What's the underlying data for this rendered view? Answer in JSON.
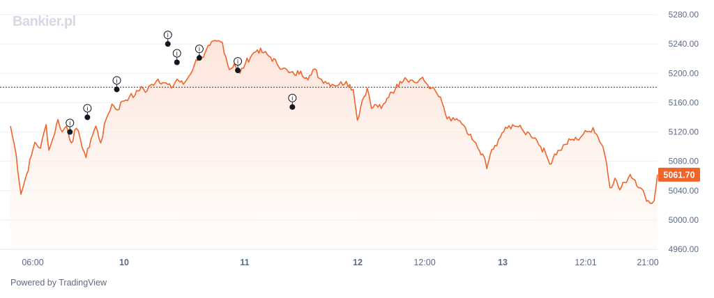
{
  "branding": {
    "watermark": "Bankier.pl",
    "powered_by": "Powered by TradingView"
  },
  "colors": {
    "line": "#f0642a",
    "area_top": "#fde3d8",
    "area_bottom": "#fff7f3",
    "grid": "#eceef2",
    "reference_line": "#333333",
    "marker_fill": "#131722",
    "price_badge": "#f0642a",
    "axis_text": "#5d6a85"
  },
  "chart_data": {
    "type": "line",
    "title": "",
    "xlabel": "",
    "ylabel": "",
    "ylim": [
      4960,
      5300
    ],
    "grid": true,
    "y_ticks": [
      "5280.00",
      "5240.00",
      "5200.00",
      "5160.00",
      "5120.00",
      "5080.00",
      "5040.00",
      "5000.00",
      "4960.00"
    ],
    "x_ticks": [
      "06:00",
      "10",
      "11",
      "12",
      "12:00",
      "13",
      "12:01",
      "21:00"
    ],
    "reference_line": 5181,
    "last_price": "5061.70",
    "series": [
      {
        "values": [
          [
            0,
            5128
          ],
          [
            0.8,
            5090
          ],
          [
            1.5,
            5035
          ],
          [
            2.3,
            5062
          ],
          [
            3.0,
            5088
          ],
          [
            3.5,
            5106
          ],
          [
            4.3,
            5098
          ],
          [
            5.1,
            5130
          ],
          [
            5.5,
            5095
          ],
          [
            6.1,
            5112
          ],
          [
            6.8,
            5137
          ],
          [
            7.4,
            5120
          ],
          [
            8.0,
            5128
          ],
          [
            8.7,
            5105
          ],
          [
            9.4,
            5125
          ],
          [
            10.0,
            5110
          ],
          [
            10.8,
            5085
          ],
          [
            11.5,
            5110
          ],
          [
            12.2,
            5128
          ],
          [
            12.9,
            5105
          ],
          [
            13.7,
            5138
          ],
          [
            14.5,
            5158
          ],
          [
            15.3,
            5150
          ],
          [
            16.0,
            5162
          ],
          [
            17.0,
            5168
          ],
          [
            17.8,
            5170
          ],
          [
            18.7,
            5182
          ],
          [
            19.3,
            5174
          ],
          [
            20.2,
            5185
          ],
          [
            21.1,
            5192
          ],
          [
            22.0,
            5187
          ],
          [
            23.0,
            5180
          ],
          [
            23.8,
            5192
          ],
          [
            24.7,
            5185
          ],
          [
            25.5,
            5196
          ],
          [
            26.3,
            5212
          ],
          [
            27.0,
            5225
          ],
          [
            27.6,
            5222
          ],
          [
            28.5,
            5238
          ],
          [
            29.5,
            5244
          ],
          [
            30.3,
            5242
          ],
          [
            30.8,
            5222
          ],
          [
            31.3,
            5205
          ],
          [
            32.0,
            5213
          ],
          [
            32.8,
            5200
          ],
          [
            33.6,
            5214
          ],
          [
            34.5,
            5225
          ],
          [
            35.3,
            5232
          ],
          [
            36.2,
            5228
          ],
          [
            37.2,
            5222
          ],
          [
            38.1,
            5213
          ],
          [
            39.0,
            5207
          ],
          [
            39.8,
            5201
          ],
          [
            40.6,
            5198
          ],
          [
            41.5,
            5203
          ],
          [
            42.3,
            5194
          ],
          [
            43.0,
            5198
          ],
          [
            43.5,
            5206
          ],
          [
            44.2,
            5193
          ],
          [
            45.0,
            5189
          ],
          [
            46.0,
            5185
          ],
          [
            47.0,
            5185
          ],
          [
            48.0,
            5189
          ],
          [
            49.0,
            5178
          ],
          [
            49.6,
            5136
          ],
          [
            50.3,
            5163
          ],
          [
            51.0,
            5180
          ],
          [
            51.6,
            5152
          ],
          [
            52.3,
            5157
          ],
          [
            53.0,
            5152
          ],
          [
            53.6,
            5160
          ],
          [
            54.3,
            5174
          ],
          [
            55.0,
            5178
          ],
          [
            55.7,
            5189
          ],
          [
            56.4,
            5194
          ],
          [
            57.2,
            5191
          ],
          [
            58.0,
            5187
          ],
          [
            58.7,
            5193
          ],
          [
            59.4,
            5187
          ],
          [
            60.2,
            5180
          ],
          [
            61.0,
            5172
          ],
          [
            61.7,
            5160
          ],
          [
            62.4,
            5138
          ],
          [
            63.0,
            5135
          ],
          [
            63.8,
            5138
          ],
          [
            64.5,
            5131
          ],
          [
            65.3,
            5118
          ],
          [
            66.0,
            5110
          ],
          [
            66.8,
            5098
          ],
          [
            67.5,
            5090
          ],
          [
            68.1,
            5070
          ],
          [
            68.8,
            5096
          ],
          [
            69.5,
            5101
          ],
          [
            70.3,
            5119
          ],
          [
            71.0,
            5125
          ],
          [
            71.8,
            5130
          ],
          [
            72.6,
            5127
          ],
          [
            73.4,
            5120
          ],
          [
            74.2,
            5118
          ],
          [
            75.0,
            5112
          ],
          [
            75.8,
            5100
          ],
          [
            76.5,
            5091
          ],
          [
            77.1,
            5076
          ],
          [
            77.8,
            5090
          ],
          [
            78.5,
            5095
          ],
          [
            79.3,
            5103
          ],
          [
            80.1,
            5109
          ],
          [
            81.0,
            5110
          ],
          [
            81.9,
            5117
          ],
          [
            82.7,
            5121
          ],
          [
            83.3,
            5126
          ],
          [
            84.0,
            5113
          ],
          [
            84.7,
            5100
          ],
          [
            85.2,
            5078
          ],
          [
            85.7,
            5044
          ],
          [
            86.4,
            5057
          ],
          [
            87.1,
            5041
          ],
          [
            87.8,
            5051
          ],
          [
            88.6,
            5062
          ],
          [
            89.3,
            5054
          ],
          [
            90.0,
            5044
          ],
          [
            90.7,
            5033
          ],
          [
            91.4,
            5023
          ],
          [
            92.0,
            5026
          ],
          [
            92.5,
            5062
          ]
        ]
      }
    ],
    "annotations": [
      {
        "x": 8.5,
        "y": 5120
      },
      {
        "x": 11.0,
        "y": 5140
      },
      {
        "x": 15.2,
        "y": 5178
      },
      {
        "x": 22.5,
        "y": 5240
      },
      {
        "x": 23.8,
        "y": 5215
      },
      {
        "x": 27.0,
        "y": 5221
      },
      {
        "x": 32.5,
        "y": 5204
      },
      {
        "x": 40.3,
        "y": 5154
      }
    ]
  }
}
